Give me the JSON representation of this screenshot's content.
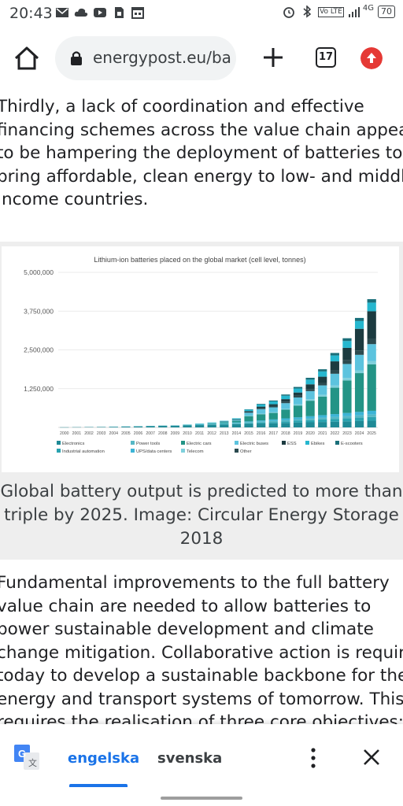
{
  "status_bar": {
    "time": "20:43",
    "network": "4G",
    "volte": "Vo LTE",
    "battery": "70",
    "left_icons": [
      "mail-icon",
      "cloud-icon",
      "youtube-icon",
      "sim-icon",
      "calendar-icon"
    ],
    "right_icons": [
      "alarm-icon",
      "bluetooth-icon",
      "volte-icon",
      "signal-icon",
      "battery-icon"
    ]
  },
  "browser": {
    "url": "energypost.eu/ba",
    "tab_count": "17"
  },
  "article": {
    "para1_lines": [
      "Thirdly, a lack of coordination and effective",
      "financing schemes across the value chain appear",
      "to be hampering the deployment of batteries to",
      "bring affordable, clean energy to low- and middle",
      "income countries."
    ],
    "caption_lines": [
      "Global battery output is predicted to more than",
      "triple by 2025. Image: Circular Energy Storage",
      "2018"
    ],
    "para2_lines": [
      "Fundamental improvements to the full battery",
      "value chain are needed to allow batteries to",
      "power sustainable development and climate",
      "change mitigation. Collaborative action is require",
      "today to develop a sustainable backbone for the",
      "energy and transport systems of tomorrow. This",
      "requires the realisation of three core objectives:"
    ]
  },
  "chart_data": {
    "type": "bar",
    "stacked": true,
    "title": "Lithium-ion batteries placed on the global market (cell level, tonnes)",
    "categories": [
      "2000",
      "2001",
      "2002",
      "2003",
      "2004",
      "2005",
      "2006",
      "2007",
      "2008",
      "2009",
      "2010",
      "2011",
      "2012",
      "2013",
      "2014",
      "2015",
      "2016",
      "2017",
      "2018",
      "2019",
      "2020",
      "2021",
      "2022",
      "2023",
      "2024",
      "2025"
    ],
    "ylim": [
      0,
      5000000
    ],
    "y_ticks": [
      "5,000,000",
      "3,750,000",
      "2,500,000",
      "1,250,000"
    ],
    "y_tick_values": [
      5000000,
      3750000,
      2500000,
      1250000
    ],
    "grid": true,
    "legend_position": "bottom",
    "series": [
      {
        "name": "Electronics",
        "color": "#1f8a96",
        "values": [
          5000,
          8000,
          12000,
          15000,
          20000,
          28000,
          35000,
          42000,
          50000,
          55000,
          65000,
          75000,
          85000,
          95000,
          105000,
          115000,
          125000,
          135000,
          145000,
          155000,
          165000,
          175000,
          185000,
          195000,
          205000,
          215000
        ]
      },
      {
        "name": "Industrial automation",
        "color": "#2aa3b0",
        "values": [
          0,
          0,
          0,
          0,
          0,
          0,
          0,
          0,
          0,
          0,
          0,
          0,
          0,
          5000,
          10000,
          20000,
          30000,
          40000,
          50000,
          60000,
          70000,
          80000,
          90000,
          100000,
          110000,
          120000
        ]
      },
      {
        "name": "Power tools",
        "color": "#56b8c6",
        "values": [
          0,
          0,
          0,
          0,
          2000,
          3000,
          5000,
          8000,
          10000,
          12000,
          15000,
          18000,
          22000,
          26000,
          30000,
          34000,
          38000,
          42000,
          46000,
          50000,
          55000,
          60000,
          65000,
          70000,
          75000,
          80000
        ]
      },
      {
        "name": "UPS/data centers",
        "color": "#3cb4d6",
        "values": [
          0,
          0,
          0,
          0,
          0,
          0,
          0,
          0,
          0,
          0,
          0,
          5000,
          8000,
          12000,
          18000,
          25000,
          32000,
          40000,
          50000,
          60000,
          70000,
          80000,
          90000,
          100000,
          110000,
          120000
        ]
      },
      {
        "name": "Electric cars",
        "color": "#239486",
        "values": [
          0,
          0,
          0,
          0,
          0,
          0,
          0,
          0,
          0,
          0,
          5000,
          10000,
          20000,
          30000,
          50000,
          170000,
          200000,
          210000,
          280000,
          380000,
          500000,
          600000,
          850000,
          1050000,
          1250000,
          1500000
        ]
      },
      {
        "name": "Telecom",
        "color": "#7fd0dc",
        "values": [
          0,
          0,
          0,
          0,
          0,
          0,
          0,
          0,
          0,
          0,
          0,
          0,
          0,
          0,
          0,
          10000,
          15000,
          20000,
          30000,
          40000,
          50000,
          60000,
          70000,
          80000,
          90000,
          100000
        ]
      },
      {
        "name": "Electric buses",
        "color": "#5cc3de",
        "values": [
          0,
          0,
          0,
          0,
          0,
          0,
          0,
          0,
          0,
          0,
          0,
          5000,
          10000,
          20000,
          30000,
          100000,
          150000,
          160000,
          180000,
          220000,
          260000,
          300000,
          380000,
          450000,
          500000,
          550000
        ]
      },
      {
        "name": "Other",
        "color": "#2b4a4f",
        "values": [
          0,
          0,
          0,
          0,
          0,
          0,
          0,
          0,
          0,
          0,
          0,
          0,
          0,
          5000,
          10000,
          20000,
          30000,
          40000,
          50000,
          60000,
          70000,
          80000,
          100000,
          120000,
          140000,
          160000
        ]
      },
      {
        "name": "ESS",
        "color": "#1c3b40",
        "values": [
          0,
          0,
          0,
          0,
          0,
          0,
          0,
          0,
          0,
          0,
          0,
          0,
          0,
          0,
          10000,
          30000,
          50000,
          60000,
          80000,
          100000,
          150000,
          200000,
          300000,
          400000,
          700000,
          900000
        ]
      },
      {
        "name": "Ebikes",
        "color": "#26b7cf",
        "values": [
          0,
          0,
          0,
          0,
          0,
          0,
          0,
          0,
          0,
          0,
          5000,
          10000,
          15000,
          20000,
          30000,
          50000,
          70000,
          90000,
          110000,
          130000,
          150000,
          170000,
          190000,
          220000,
          250000,
          280000
        ]
      },
      {
        "name": "E-scooters",
        "color": "#1a6f7a",
        "values": [
          0,
          0,
          0,
          0,
          0,
          0,
          0,
          0,
          0,
          0,
          0,
          0,
          0,
          0,
          0,
          10000,
          20000,
          30000,
          40000,
          50000,
          60000,
          70000,
          80000,
          90000,
          100000,
          110000
        ]
      }
    ]
  },
  "translate": {
    "lang_source": "engelska",
    "lang_target": "svenska"
  },
  "colors": {
    "accent": "#1a73e8",
    "update_badge": "#e53935",
    "url_bar_bg": "#f1f3f4"
  }
}
